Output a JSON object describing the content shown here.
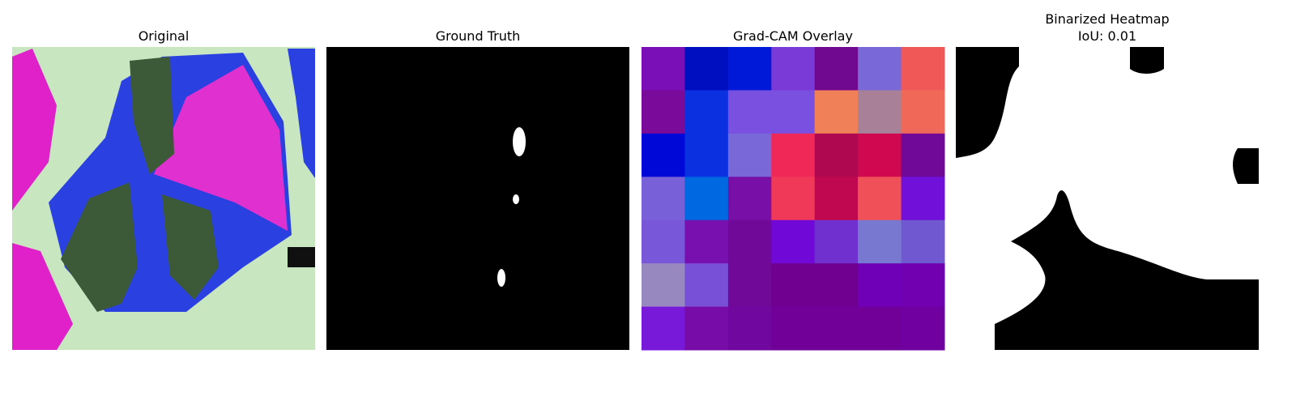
{
  "panels": [
    {
      "title": "Original"
    },
    {
      "title": "Ground Truth"
    },
    {
      "title": "Grad-CAM Overlay"
    },
    {
      "title": "Binarized Heatmap",
      "subtitle": "IoU: 0.01"
    }
  ]
}
